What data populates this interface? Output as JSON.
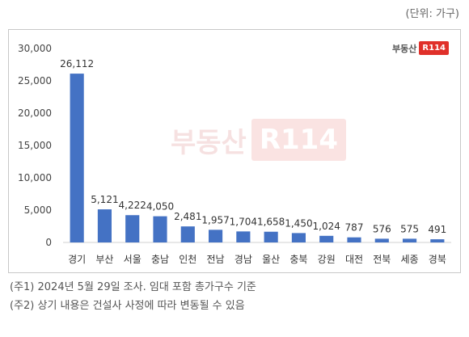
{
  "unit_label": "(단위: 가구)",
  "logo": {
    "text": "부동산",
    "badge": "R114"
  },
  "chart_data": {
    "type": "bar",
    "categories": [
      "경기",
      "부산",
      "서울",
      "충남",
      "인천",
      "전남",
      "경남",
      "울산",
      "충북",
      "강원",
      "대전",
      "전북",
      "세종",
      "경북"
    ],
    "values": [
      26112,
      5121,
      4222,
      4050,
      2481,
      1957,
      1704,
      1658,
      1450,
      1024,
      787,
      576,
      575,
      491
    ],
    "data_labels": [
      "26,112",
      "5,121",
      "4,222",
      "4,050",
      "2,481",
      "1,957",
      "1,704",
      "1,658",
      "1,450",
      "1,024",
      "787",
      "576",
      "575",
      "491"
    ],
    "yticks": [
      "0",
      "5,000",
      "10,000",
      "15,000",
      "20,000",
      "25,000",
      "30,000"
    ],
    "ylim": [
      0,
      30000
    ],
    "title": "",
    "xlabel": "",
    "ylabel": "",
    "color": "#4472c4",
    "grid": false
  },
  "notes": [
    "(주1) 2024년 5월 29일 조사. 임대 포함 총가구수 기준",
    "(주2) 상기 내용은 건설사 사정에 따라 변동될 수 있음"
  ]
}
